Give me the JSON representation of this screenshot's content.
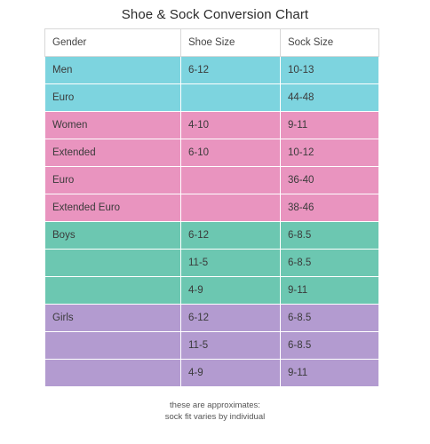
{
  "title": "Shoe & Sock Conversion Chart",
  "headers": [
    "Gender",
    "Shoe  Size",
    "Sock Size"
  ],
  "groups": [
    {
      "color": "#7dd4df",
      "rows": [
        [
          "Men",
          "6-12",
          "10-13"
        ],
        [
          "Euro",
          "",
          "44-48"
        ]
      ]
    },
    {
      "color": "#e994bf",
      "rows": [
        [
          "Women",
          "4-10",
          "9-11"
        ],
        [
          "Extended",
          "6-10",
          "10-12"
        ],
        [
          "Euro",
          "",
          "36-40"
        ],
        [
          "Extended Euro",
          "",
          "38-46"
        ]
      ]
    },
    {
      "color": "#6cc7b1",
      "rows": [
        [
          "Boys",
          "6-12",
          "6-8.5"
        ],
        [
          "",
          "11-5",
          "6-8.5"
        ],
        [
          "",
          "4-9",
          "9-11"
        ]
      ]
    },
    {
      "color": "#b39bd0",
      "rows": [
        [
          "Girls",
          "6-12",
          "6-8.5"
        ],
        [
          "",
          "11-5",
          "6-8.5"
        ],
        [
          "",
          "4-9",
          "9-11"
        ]
      ]
    }
  ],
  "footnote": {
    "line1": "these are approximates:",
    "line2": "sock fit varies by individual"
  }
}
